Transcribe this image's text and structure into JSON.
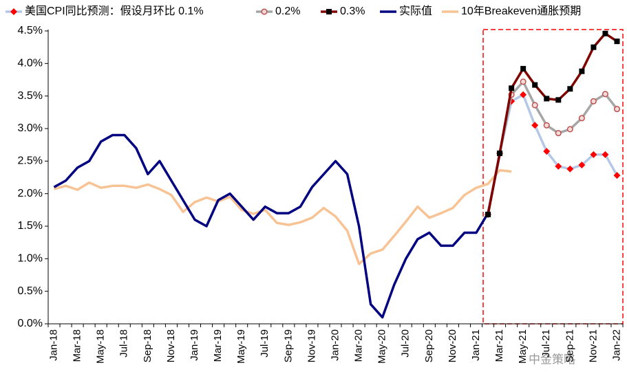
{
  "chart_data": {
    "type": "line",
    "categories": [
      "Jan-18",
      null,
      "Mar-18",
      null,
      "May-18",
      null,
      "Jul-18",
      null,
      "Sep-18",
      null,
      "Nov-18",
      null,
      "Jan-19",
      null,
      "Mar-19",
      null,
      "May-19",
      null,
      "Jul-19",
      null,
      "Sep-19",
      null,
      "Nov-19",
      null,
      "Jan-20",
      null,
      "Mar-20",
      null,
      "May-20",
      null,
      "Jul-20",
      null,
      "Sep-20",
      null,
      "Nov-20",
      null,
      "Jan-21",
      null,
      "Mar-21",
      null,
      "May-21",
      null,
      "Jul-21",
      null,
      "Sep-21",
      null,
      "Nov-21",
      null,
      "Jan-22"
    ],
    "series": [
      {
        "name": "美国CPI同比预测：假设月环比 0.1%",
        "color": "#b4c7e7",
        "marker": "diamond",
        "marker_color": "#ff0000",
        "values": [
          null,
          null,
          null,
          null,
          null,
          null,
          null,
          null,
          null,
          null,
          null,
          null,
          null,
          null,
          null,
          null,
          null,
          null,
          null,
          null,
          null,
          null,
          null,
          null,
          null,
          null,
          null,
          null,
          null,
          null,
          null,
          null,
          null,
          null,
          null,
          null,
          null,
          1.68,
          2.62,
          3.42,
          3.52,
          3.05,
          2.65,
          2.42,
          2.38,
          2.44,
          2.6,
          2.6,
          2.28
        ]
      },
      {
        "name": "0.2%",
        "color": "#a6a6a6",
        "marker": "circle",
        "marker_color": "#c0504d",
        "values": [
          null,
          null,
          null,
          null,
          null,
          null,
          null,
          null,
          null,
          null,
          null,
          null,
          null,
          null,
          null,
          null,
          null,
          null,
          null,
          null,
          null,
          null,
          null,
          null,
          null,
          null,
          null,
          null,
          null,
          null,
          null,
          null,
          null,
          null,
          null,
          null,
          null,
          1.68,
          2.62,
          3.52,
          3.72,
          3.36,
          3.05,
          2.93,
          2.99,
          3.16,
          3.42,
          3.53,
          3.3
        ]
      },
      {
        "name": "0.3%",
        "color": "#800000",
        "marker": "square",
        "marker_color": "#000000",
        "values": [
          null,
          null,
          null,
          null,
          null,
          null,
          null,
          null,
          null,
          null,
          null,
          null,
          null,
          null,
          null,
          null,
          null,
          null,
          null,
          null,
          null,
          null,
          null,
          null,
          null,
          null,
          null,
          null,
          null,
          null,
          null,
          null,
          null,
          null,
          null,
          null,
          null,
          1.68,
          2.62,
          3.62,
          3.92,
          3.67,
          3.46,
          3.44,
          3.61,
          3.88,
          4.25,
          4.46,
          4.34
        ]
      },
      {
        "name": "实际值",
        "color": "#000080",
        "marker": "none",
        "values": [
          2.1,
          2.2,
          2.4,
          2.5,
          2.8,
          2.9,
          2.9,
          2.7,
          2.3,
          2.5,
          2.2,
          1.9,
          1.6,
          1.5,
          1.9,
          2.0,
          1.8,
          1.6,
          1.8,
          1.7,
          1.7,
          1.8,
          2.1,
          2.3,
          2.5,
          2.3,
          1.5,
          0.3,
          0.1,
          0.6,
          1.0,
          1.3,
          1.4,
          1.2,
          1.2,
          1.4,
          1.4,
          1.7,
          2.6,
          null,
          null,
          null,
          null,
          null,
          null,
          null,
          null,
          null,
          null
        ]
      },
      {
        "name": "10年Breakeven通胀预期",
        "color": "#f8c394",
        "marker": "none",
        "values": [
          2.07,
          2.12,
          2.06,
          2.17,
          2.09,
          2.12,
          2.12,
          2.09,
          2.14,
          2.07,
          1.98,
          1.72,
          1.87,
          1.94,
          1.88,
          1.95,
          1.75,
          1.69,
          1.75,
          1.55,
          1.52,
          1.56,
          1.63,
          1.78,
          1.65,
          1.43,
          0.92,
          1.08,
          1.14,
          1.35,
          1.57,
          1.8,
          1.63,
          1.7,
          1.78,
          1.98,
          2.09,
          2.15,
          2.36,
          2.34,
          null,
          null,
          null,
          null,
          null,
          null,
          null,
          null,
          null
        ]
      }
    ],
    "ylim": [
      0,
      4.5
    ],
    "yticks": [
      {
        "value": 0,
        "label": "0.0%"
      },
      {
        "value": 0.5,
        "label": "0.5%"
      },
      {
        "value": 1,
        "label": "1.0%"
      },
      {
        "value": 1.5,
        "label": "1.5%"
      },
      {
        "value": 2,
        "label": "2.0%"
      },
      {
        "value": 2.5,
        "label": "2.5%"
      },
      {
        "value": 3,
        "label": "3.0%"
      },
      {
        "value": 3.5,
        "label": "3.5%"
      },
      {
        "value": 4,
        "label": "4.0%"
      },
      {
        "value": 4.5,
        "label": "4.5%"
      }
    ],
    "grid": false,
    "legend": "top",
    "watermark": "中金策略"
  }
}
